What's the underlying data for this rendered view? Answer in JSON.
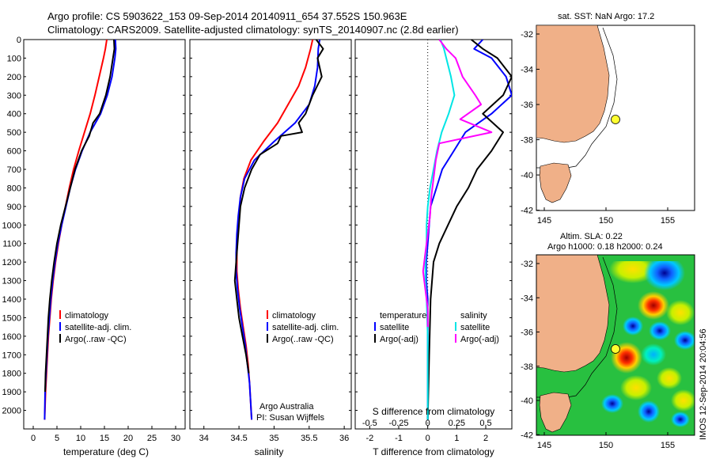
{
  "header": {
    "title_line1": "Argo profile: CS 5903622_153 09-Sep-2014 20140911_654 37.552S 150.963E",
    "title_line2": "Climatology: CARS2009. Satellite-adjusted climatology: synTS_20140907.nc (2.8d earlier)"
  },
  "colors": {
    "climatology": "#ff0000",
    "satellite": "#0000ff",
    "argo": "#000000",
    "cyan": "#00e5e5",
    "magenta": "#ff00ff",
    "land": "#f0b088"
  },
  "depth_ticks": [
    "0",
    "100",
    "200",
    "300",
    "400",
    "500",
    "600",
    "700",
    "800",
    "900",
    "1000",
    "1100",
    "1200",
    "1300",
    "1400",
    "1500",
    "1600",
    "1700",
    "1800",
    "1900",
    "2000"
  ],
  "chart_data": [
    {
      "type": "line",
      "name": "temperature-profile",
      "xlabel": "temperature (deg C)",
      "ylabel": "depth",
      "xlim": [
        -2,
        32
      ],
      "ylim": [
        2100,
        0
      ],
      "xticks": [
        "0",
        "5",
        "10",
        "15",
        "20",
        "25",
        "30"
      ],
      "xtick_values": [
        0,
        5,
        10,
        15,
        20,
        25,
        30
      ],
      "legend": [
        "climatology",
        "satellite-adj. clim.",
        "Argo(..raw -QC)"
      ],
      "series": [
        {
          "name": "climatology",
          "color": "#ff0000",
          "x": [
            15.5,
            15.2,
            14.8,
            13.9,
            13.0,
            12.0,
            10.8,
            9.6,
            8.5,
            7.6,
            6.8,
            6.0,
            5.3,
            4.7,
            4.2,
            3.8,
            3.5,
            3.2,
            3.0,
            2.8,
            2.6,
            2.4
          ],
          "y": [
            0,
            50,
            100,
            200,
            300,
            400,
            500,
            600,
            700,
            800,
            900,
            1000,
            1100,
            1200,
            1300,
            1400,
            1500,
            1600,
            1700,
            1800,
            1900,
            2050
          ]
        },
        {
          "name": "satellite-adj. clim.",
          "color": "#0000ff",
          "x": [
            17.3,
            17.4,
            17.2,
            16.6,
            15.6,
            14.2,
            12.0,
            10.3,
            8.9,
            7.8,
            6.9,
            6.0,
            5.2,
            4.6,
            4.1,
            3.7,
            3.4,
            3.1,
            2.9,
            2.7,
            2.5,
            2.4
          ],
          "y": [
            0,
            50,
            100,
            200,
            300,
            400,
            500,
            600,
            700,
            800,
            900,
            1000,
            1100,
            1200,
            1300,
            1400,
            1500,
            1600,
            1700,
            1800,
            1900,
            2050
          ]
        },
        {
          "name": "Argo(..raw -QC)",
          "color": "#000000",
          "x": [
            17.0,
            17.1,
            16.8,
            16.2,
            15.3,
            14.0,
            12.6,
            11.8,
            10.2,
            8.8,
            7.8,
            6.8,
            5.8,
            5.0,
            4.4,
            3.9,
            3.5,
            3.2,
            3.0,
            2.8,
            2.6,
            2.5
          ],
          "y": [
            0,
            50,
            100,
            200,
            300,
            400,
            450,
            520,
            600,
            700,
            800,
            900,
            1000,
            1100,
            1200,
            1300,
            1400,
            1500,
            1600,
            1700,
            1800,
            1900
          ]
        }
      ]
    },
    {
      "type": "line",
      "name": "salinity-profile",
      "xlabel": "salinity",
      "ylabel": "depth",
      "xlim": [
        33.8,
        36.1
      ],
      "ylim": [
        2100,
        0
      ],
      "xticks": [
        "34",
        "34.5",
        "35",
        "35.5",
        "36"
      ],
      "xtick_values": [
        34,
        34.5,
        35,
        35.5,
        36
      ],
      "legend": [
        "climatology",
        "satellite-adj. clim.",
        "Argo(..raw -QC)"
      ],
      "annotation": [
        "Argo Australia",
        "PI: Susan Wijffels"
      ],
      "series": [
        {
          "name": "climatology",
          "color": "#ff0000",
          "x": [
            35.55,
            35.52,
            35.45,
            35.35,
            35.2,
            35.05,
            34.85,
            34.67,
            34.57,
            34.52,
            34.5,
            34.48,
            34.47,
            34.47,
            34.49,
            34.52,
            34.56,
            34.6,
            34.63,
            34.65,
            34.68
          ],
          "y": [
            0,
            50,
            150,
            250,
            350,
            450,
            550,
            650,
            750,
            850,
            950,
            1050,
            1150,
            1250,
            1350,
            1450,
            1550,
            1650,
            1750,
            1850,
            2050
          ]
        },
        {
          "name": "satellite-adj. clim.",
          "color": "#0000ff",
          "x": [
            35.65,
            35.63,
            35.62,
            35.58,
            35.5,
            35.3,
            35.0,
            34.72,
            34.58,
            34.52,
            34.49,
            34.47,
            34.46,
            34.46,
            34.48,
            34.51,
            34.55,
            34.59,
            34.62,
            34.65,
            34.68
          ],
          "y": [
            0,
            50,
            150,
            250,
            350,
            450,
            550,
            650,
            750,
            850,
            950,
            1050,
            1150,
            1250,
            1350,
            1450,
            1550,
            1650,
            1750,
            1850,
            2050
          ]
        },
        {
          "name": "Argo(..raw -QC)",
          "color": "#000000",
          "x": [
            35.6,
            35.7,
            35.62,
            35.68,
            35.55,
            35.45,
            35.35,
            35.4,
            35.1,
            35.05,
            34.8,
            34.68,
            34.58,
            34.52,
            34.5,
            34.48,
            34.46,
            34.44,
            34.47,
            34.5,
            34.55,
            34.6,
            34.64
          ],
          "y": [
            0,
            50,
            100,
            200,
            300,
            400,
            450,
            500,
            520,
            560,
            620,
            700,
            800,
            900,
            1000,
            1100,
            1200,
            1300,
            1400,
            1500,
            1600,
            1700,
            1800
          ]
        }
      ]
    },
    {
      "type": "line",
      "name": "difference-profile",
      "xlabel": "T difference from climatology",
      "xlabel_top": "S difference from climatology",
      "xlim": [
        -2.5,
        2.9
      ],
      "ylim": [
        2100,
        0
      ],
      "xticks": [
        "-2",
        "-1",
        "0",
        "1",
        "2"
      ],
      "xtick_values": [
        -2,
        -1,
        0,
        1,
        2
      ],
      "sticks": [
        "-0.5",
        "-0.25",
        "0",
        "0.25",
        "0.5"
      ],
      "stick_values": [
        -0.5,
        -0.25,
        0,
        0.25,
        0.5
      ],
      "legend_temperature": [
        "temperature",
        "satellite",
        "Argo(-adj)"
      ],
      "legend_salinity": [
        "salinity",
        "satellite",
        "Argo(-adj)"
      ],
      "series": [
        {
          "name": "T satellite",
          "color": "#0000ff",
          "x": [
            1.9,
            1.6,
            2.2,
            2.7,
            2.9,
            2.2,
            1.3,
            0.9,
            0.5,
            0.3,
            0.1,
            0.05,
            0.0,
            -0.05,
            -0.05,
            0.0,
            0.0,
            0.0,
            0.0,
            0.0
          ],
          "y": [
            0,
            50,
            100,
            200,
            300,
            400,
            500,
            600,
            700,
            800,
            900,
            1000,
            1100,
            1200,
            1300,
            1400,
            1500,
            1600,
            1800,
            2050
          ]
        },
        {
          "name": "T Argo(-adj)",
          "color": "#000000",
          "x": [
            1.5,
            1.9,
            2.4,
            2.9,
            2.6,
            1.9,
            2.6,
            2.2,
            1.7,
            1.4,
            1.0,
            0.7,
            0.4,
            0.2,
            0.1,
            0.05,
            0.0
          ],
          "y": [
            0,
            50,
            100,
            200,
            300,
            400,
            500,
            600,
            700,
            800,
            900,
            1000,
            1100,
            1200,
            1400,
            1700,
            2050
          ]
        },
        {
          "name": "S satellite",
          "color": "#00e5e5",
          "x": [
            0.11,
            0.14,
            0.16,
            0.2,
            0.23,
            0.18,
            0.12,
            0.08,
            0.05,
            0.02,
            0.0,
            -0.01,
            -0.01,
            -0.02,
            -0.02,
            -0.01,
            0.0,
            0.0,
            0.0
          ],
          "y": [
            0,
            50,
            100,
            200,
            300,
            400,
            500,
            600,
            700,
            800,
            900,
            1000,
            1100,
            1200,
            1300,
            1400,
            1600,
            1800,
            2050
          ]
        },
        {
          "name": "S Argo(-adj)",
          "color": "#ff00ff",
          "x": [
            0.1,
            0.16,
            0.24,
            0.3,
            0.41,
            0.46,
            0.28,
            0.55,
            0.1,
            0.07,
            0.05,
            0.03,
            0.02,
            0.0,
            -0.02,
            -0.04,
            -0.02,
            0.0,
            0.0
          ],
          "y": [
            0,
            50,
            100,
            200,
            300,
            350,
            430,
            500,
            560,
            650,
            750,
            850,
            950,
            1050,
            1150,
            1250,
            1350,
            1450,
            1550
          ]
        }
      ]
    }
  ],
  "map1": {
    "title": "sat. SST: NaN Argo: 17.2",
    "yticks": [
      "-32",
      "-34",
      "-36",
      "-38",
      "-40",
      "-42"
    ],
    "xticks": [
      "145",
      "150",
      "155"
    ]
  },
  "map2": {
    "title_line1": "Altim. SLA: 0.22",
    "title_line2": "Argo h1000: 0.18 h2000: 0.24",
    "yticks": [
      "-32",
      "-34",
      "-36",
      "-38",
      "-40",
      "-42"
    ],
    "xticks": [
      "145",
      "150",
      "155"
    ],
    "side_label": "IMOS 12-Sep-2014 20:04:56"
  }
}
